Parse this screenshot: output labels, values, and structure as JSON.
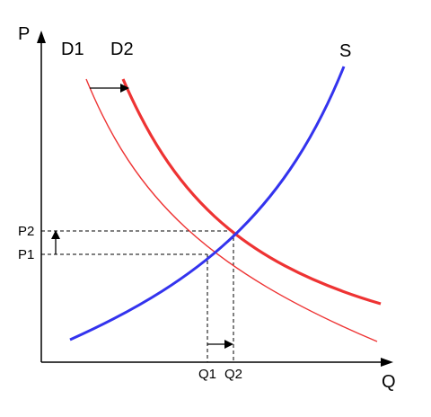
{
  "axes": {
    "y_label": "P",
    "x_label": "Q"
  },
  "curves": {
    "d1": {
      "label": "D1",
      "color": "#ee3333"
    },
    "d2": {
      "label": "D2",
      "color": "#ee3333"
    },
    "s": {
      "label": "S",
      "color": "#3333ee"
    }
  },
  "ticks": {
    "p1": "P1",
    "p2": "P2",
    "q1": "Q1",
    "q2": "Q2"
  },
  "colors": {
    "axis": "#000000",
    "guide": "#000000"
  }
}
